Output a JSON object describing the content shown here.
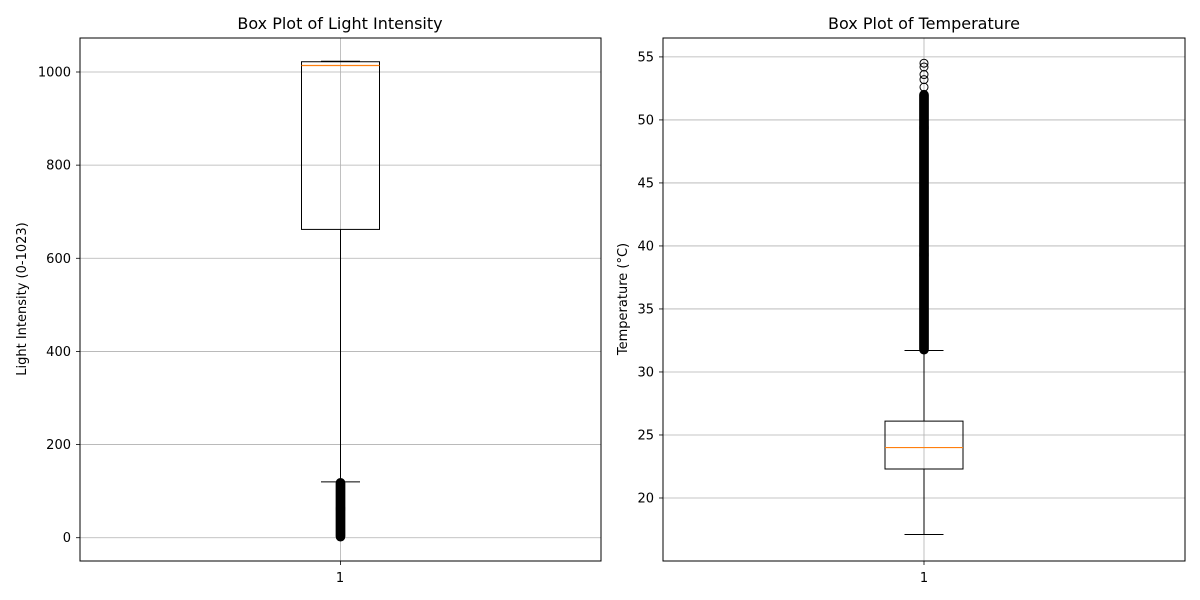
{
  "chart_data": [
    {
      "type": "boxplot",
      "title": "Box Plot of Light Intensity",
      "xlabel": "",
      "ylabel": "Light Intensity (0-1023)",
      "categories": [
        "1"
      ],
      "ylim": [
        -50,
        1073
      ],
      "yticks": [
        0,
        200,
        400,
        600,
        800,
        1000
      ],
      "grid": true,
      "box": {
        "whisker_low": 120,
        "q1": 662,
        "median": 1014,
        "q3": 1022,
        "whisker_high": 1023
      },
      "outliers": {
        "range": [
          0,
          118
        ]
      }
    },
    {
      "type": "boxplot",
      "title": "Box Plot of Temperature",
      "xlabel": "",
      "ylabel": "Temperature (°C)",
      "categories": [
        "1"
      ],
      "ylim": [
        15.0,
        56.5
      ],
      "yticks": [
        20,
        25,
        30,
        35,
        40,
        45,
        50,
        55
      ],
      "grid": true,
      "box": {
        "whisker_low": 17.1,
        "q1": 22.3,
        "median": 24.0,
        "q3": 26.1,
        "whisker_high": 31.7
      },
      "outliers": {
        "range": [
          31.7,
          52.0
        ],
        "points": [
          52.6,
          53.2,
          53.6,
          54.2,
          54.5
        ]
      }
    }
  ],
  "colors": {
    "box": "#000000",
    "median": "#ff7f0e",
    "grid": "#b0b0b0"
  }
}
